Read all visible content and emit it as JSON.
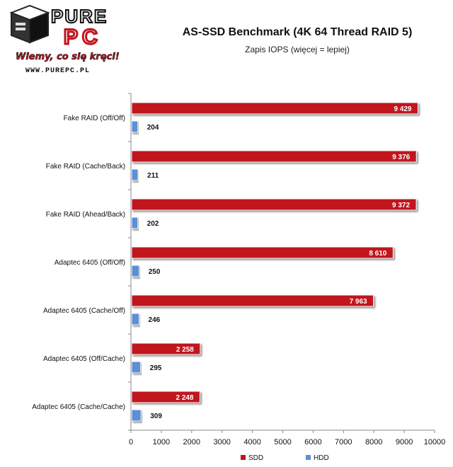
{
  "logo": {
    "brand_top": "PURE",
    "brand_bottom": "PC",
    "slogan": "Wiemy, co się kręci!",
    "url": "WWW.PUREPC.PL"
  },
  "chart_data": {
    "type": "bar",
    "orientation": "horizontal",
    "title": "AS-SSD Benchmark (4K 64 Thread RAID 5)",
    "subtitle": "Zapis IOPS (więcej = lepiej)",
    "categories": [
      "Fake RAID (Off/Off)",
      "Fake RAID (Cache/Back)",
      "Fake RAID (Ahead/Back)",
      "Adaptec 6405 (Off/Off)",
      "Adaptec 6405 (Cache/Off)",
      "Adaptec 6405 (Off/Cache)",
      "Adaptec 6405 (Cache/Cache)"
    ],
    "series": [
      {
        "name": "SDD",
        "color": "#c0141c",
        "values": [
          9429,
          9376,
          9372,
          8610,
          7963,
          2258,
          2248
        ],
        "labels": [
          "9 429",
          "9 376",
          "9 372",
          "8 610",
          "7 963",
          "2 258",
          "2 248"
        ]
      },
      {
        "name": "HDD",
        "color": "#5b8fd6",
        "values": [
          204,
          211,
          202,
          250,
          246,
          295,
          309
        ],
        "labels": [
          "204",
          "211",
          "202",
          "250",
          "246",
          "295",
          "309"
        ]
      }
    ],
    "xlim": [
      0,
      10000
    ],
    "xticks": [
      0,
      1000,
      2000,
      3000,
      4000,
      5000,
      6000,
      7000,
      8000,
      9000,
      10000
    ],
    "grid": false,
    "legend": "bottom"
  }
}
